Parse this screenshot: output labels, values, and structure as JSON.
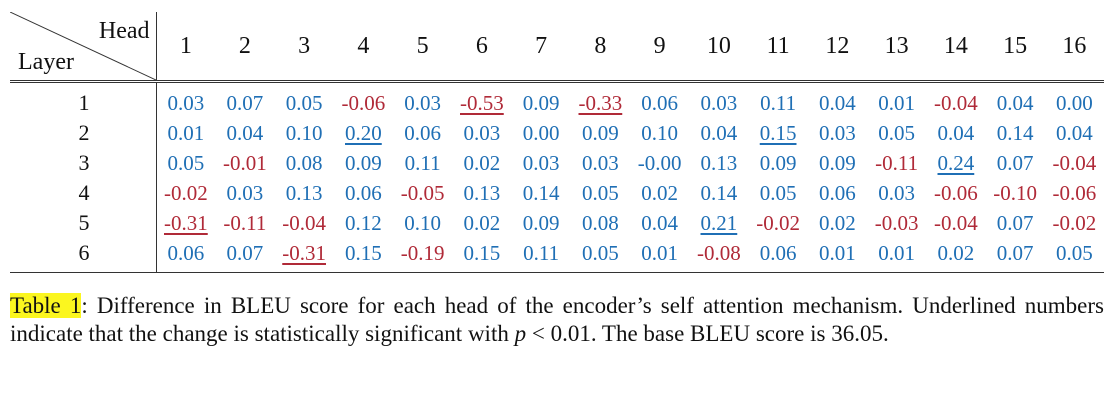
{
  "table": {
    "corner_head_label": "Head",
    "corner_layer_label": "Layer",
    "heads": [
      "1",
      "2",
      "3",
      "4",
      "5",
      "6",
      "7",
      "8",
      "9",
      "10",
      "11",
      "12",
      "13",
      "14",
      "15",
      "16"
    ],
    "rows": [
      {
        "layer": "1",
        "cells": [
          {
            "v": "0.03",
            "sign": "pos",
            "sig": false
          },
          {
            "v": "0.07",
            "sign": "pos",
            "sig": false
          },
          {
            "v": "0.05",
            "sign": "pos",
            "sig": false
          },
          {
            "v": "-0.06",
            "sign": "neg",
            "sig": false
          },
          {
            "v": "0.03",
            "sign": "pos",
            "sig": false
          },
          {
            "v": "-0.53",
            "sign": "neg",
            "sig": true
          },
          {
            "v": "0.09",
            "sign": "pos",
            "sig": false
          },
          {
            "v": "-0.33",
            "sign": "neg",
            "sig": true
          },
          {
            "v": "0.06",
            "sign": "pos",
            "sig": false
          },
          {
            "v": "0.03",
            "sign": "pos",
            "sig": false
          },
          {
            "v": "0.11",
            "sign": "pos",
            "sig": false
          },
          {
            "v": "0.04",
            "sign": "pos",
            "sig": false
          },
          {
            "v": "0.01",
            "sign": "pos",
            "sig": false
          },
          {
            "v": "-0.04",
            "sign": "neg",
            "sig": false
          },
          {
            "v": "0.04",
            "sign": "pos",
            "sig": false
          },
          {
            "v": "0.00",
            "sign": "pos",
            "sig": false
          }
        ]
      },
      {
        "layer": "2",
        "cells": [
          {
            "v": "0.01",
            "sign": "pos",
            "sig": false
          },
          {
            "v": "0.04",
            "sign": "pos",
            "sig": false
          },
          {
            "v": "0.10",
            "sign": "pos",
            "sig": false
          },
          {
            "v": "0.20",
            "sign": "pos",
            "sig": true
          },
          {
            "v": "0.06",
            "sign": "pos",
            "sig": false
          },
          {
            "v": "0.03",
            "sign": "pos",
            "sig": false
          },
          {
            "v": "0.00",
            "sign": "pos",
            "sig": false
          },
          {
            "v": "0.09",
            "sign": "pos",
            "sig": false
          },
          {
            "v": "0.10",
            "sign": "pos",
            "sig": false
          },
          {
            "v": "0.04",
            "sign": "pos",
            "sig": false
          },
          {
            "v": "0.15",
            "sign": "pos",
            "sig": true
          },
          {
            "v": "0.03",
            "sign": "pos",
            "sig": false
          },
          {
            "v": "0.05",
            "sign": "pos",
            "sig": false
          },
          {
            "v": "0.04",
            "sign": "pos",
            "sig": false
          },
          {
            "v": "0.14",
            "sign": "pos",
            "sig": false
          },
          {
            "v": "0.04",
            "sign": "pos",
            "sig": false
          }
        ]
      },
      {
        "layer": "3",
        "cells": [
          {
            "v": "0.05",
            "sign": "pos",
            "sig": false
          },
          {
            "v": "-0.01",
            "sign": "neg",
            "sig": false
          },
          {
            "v": "0.08",
            "sign": "pos",
            "sig": false
          },
          {
            "v": "0.09",
            "sign": "pos",
            "sig": false
          },
          {
            "v": "0.11",
            "sign": "pos",
            "sig": false
          },
          {
            "v": "0.02",
            "sign": "pos",
            "sig": false
          },
          {
            "v": "0.03",
            "sign": "pos",
            "sig": false
          },
          {
            "v": "0.03",
            "sign": "pos",
            "sig": false
          },
          {
            "v": "-0.00",
            "sign": "pos",
            "sig": false
          },
          {
            "v": "0.13",
            "sign": "pos",
            "sig": false
          },
          {
            "v": "0.09",
            "sign": "pos",
            "sig": false
          },
          {
            "v": "0.09",
            "sign": "pos",
            "sig": false
          },
          {
            "v": "-0.11",
            "sign": "neg",
            "sig": false
          },
          {
            "v": "0.24",
            "sign": "pos",
            "sig": true
          },
          {
            "v": "0.07",
            "sign": "pos",
            "sig": false
          },
          {
            "v": "-0.04",
            "sign": "neg",
            "sig": false
          }
        ]
      },
      {
        "layer": "4",
        "cells": [
          {
            "v": "-0.02",
            "sign": "neg",
            "sig": false
          },
          {
            "v": "0.03",
            "sign": "pos",
            "sig": false
          },
          {
            "v": "0.13",
            "sign": "pos",
            "sig": false
          },
          {
            "v": "0.06",
            "sign": "pos",
            "sig": false
          },
          {
            "v": "-0.05",
            "sign": "neg",
            "sig": false
          },
          {
            "v": "0.13",
            "sign": "pos",
            "sig": false
          },
          {
            "v": "0.14",
            "sign": "pos",
            "sig": false
          },
          {
            "v": "0.05",
            "sign": "pos",
            "sig": false
          },
          {
            "v": "0.02",
            "sign": "pos",
            "sig": false
          },
          {
            "v": "0.14",
            "sign": "pos",
            "sig": false
          },
          {
            "v": "0.05",
            "sign": "pos",
            "sig": false
          },
          {
            "v": "0.06",
            "sign": "pos",
            "sig": false
          },
          {
            "v": "0.03",
            "sign": "pos",
            "sig": false
          },
          {
            "v": "-0.06",
            "sign": "neg",
            "sig": false
          },
          {
            "v": "-0.10",
            "sign": "neg",
            "sig": false
          },
          {
            "v": "-0.06",
            "sign": "neg",
            "sig": false
          }
        ]
      },
      {
        "layer": "5",
        "cells": [
          {
            "v": "-0.31",
            "sign": "neg",
            "sig": true
          },
          {
            "v": "-0.11",
            "sign": "neg",
            "sig": false
          },
          {
            "v": "-0.04",
            "sign": "neg",
            "sig": false
          },
          {
            "v": "0.12",
            "sign": "pos",
            "sig": false
          },
          {
            "v": "0.10",
            "sign": "pos",
            "sig": false
          },
          {
            "v": "0.02",
            "sign": "pos",
            "sig": false
          },
          {
            "v": "0.09",
            "sign": "pos",
            "sig": false
          },
          {
            "v": "0.08",
            "sign": "pos",
            "sig": false
          },
          {
            "v": "0.04",
            "sign": "pos",
            "sig": false
          },
          {
            "v": "0.21",
            "sign": "pos",
            "sig": true
          },
          {
            "v": "-0.02",
            "sign": "neg",
            "sig": false
          },
          {
            "v": "0.02",
            "sign": "pos",
            "sig": false
          },
          {
            "v": "-0.03",
            "sign": "neg",
            "sig": false
          },
          {
            "v": "-0.04",
            "sign": "neg",
            "sig": false
          },
          {
            "v": "0.07",
            "sign": "pos",
            "sig": false
          },
          {
            "v": "-0.02",
            "sign": "neg",
            "sig": false
          }
        ]
      },
      {
        "layer": "6",
        "cells": [
          {
            "v": "0.06",
            "sign": "pos",
            "sig": false
          },
          {
            "v": "0.07",
            "sign": "pos",
            "sig": false
          },
          {
            "v": "-0.31",
            "sign": "neg",
            "sig": true
          },
          {
            "v": "0.15",
            "sign": "pos",
            "sig": false
          },
          {
            "v": "-0.19",
            "sign": "neg",
            "sig": false
          },
          {
            "v": "0.15",
            "sign": "pos",
            "sig": false
          },
          {
            "v": "0.11",
            "sign": "pos",
            "sig": false
          },
          {
            "v": "0.05",
            "sign": "pos",
            "sig": false
          },
          {
            "v": "0.01",
            "sign": "pos",
            "sig": false
          },
          {
            "v": "-0.08",
            "sign": "neg",
            "sig": false
          },
          {
            "v": "0.06",
            "sign": "pos",
            "sig": false
          },
          {
            "v": "0.01",
            "sign": "pos",
            "sig": false
          },
          {
            "v": "0.01",
            "sign": "pos",
            "sig": false
          },
          {
            "v": "0.02",
            "sign": "pos",
            "sig": false
          },
          {
            "v": "0.07",
            "sign": "pos",
            "sig": false
          },
          {
            "v": "0.05",
            "sign": "pos",
            "sig": false
          }
        ]
      }
    ]
  },
  "caption": {
    "label": "Table 1",
    "text_part1": ":  Difference in BLEU score for each head of the encoder’s self attention mechanism. Underlined numbers indicate that the change is statistically significant with ",
    "p_var": "p",
    "p_rel": " < 0.01",
    "text_part2": ". The base BLEU score is 36.05."
  },
  "colors": {
    "positive": "#1f6fb5",
    "negative": "#b02a38",
    "highlight": "#fbf61f"
  }
}
